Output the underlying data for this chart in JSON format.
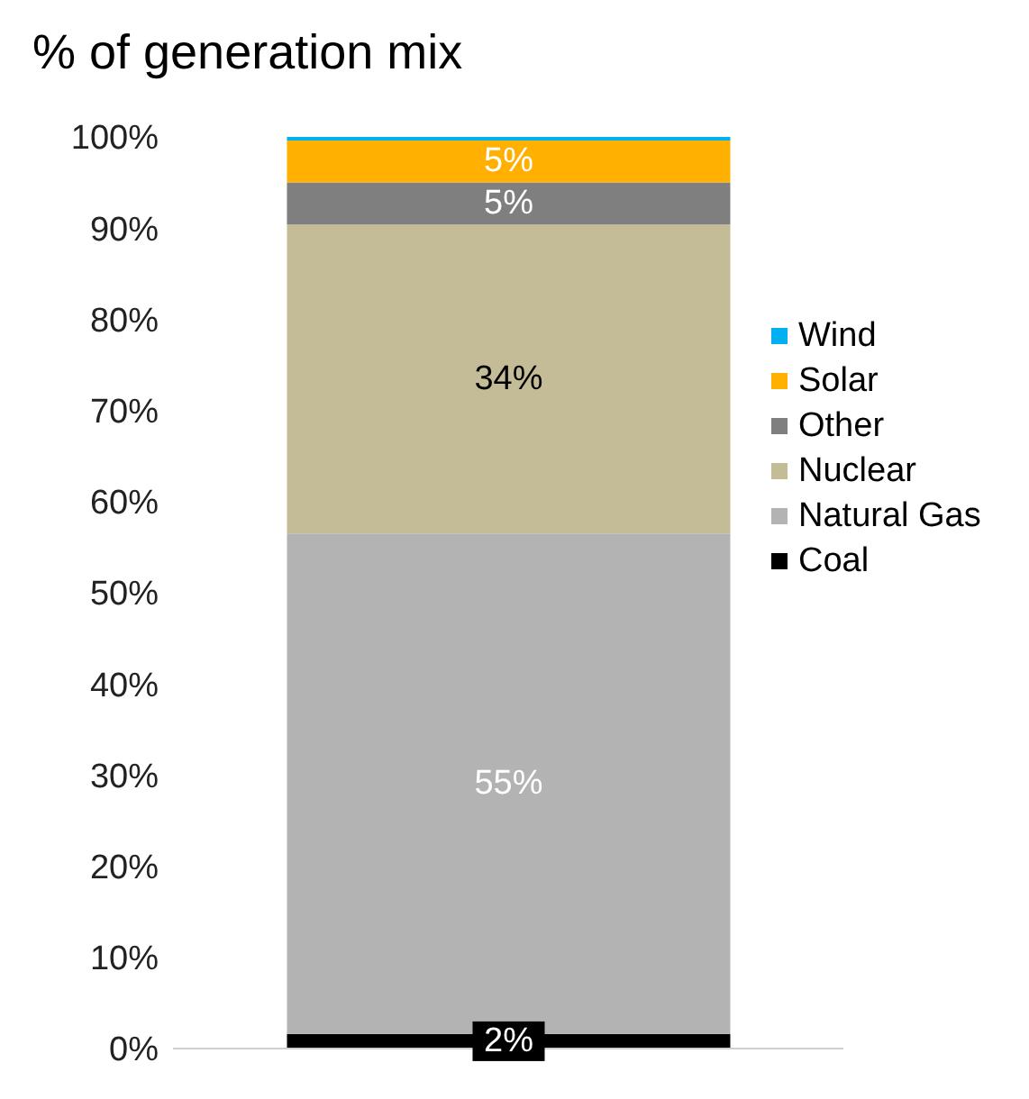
{
  "chart_data": {
    "type": "bar",
    "title": "% of generation mix",
    "stacked": true,
    "categories": [
      null
    ],
    "series": [
      {
        "name": "Coal",
        "color": "#000000",
        "values": [
          1.6
        ],
        "value_labels": [
          "2%"
        ]
      },
      {
        "name": "Natural Gas",
        "color": "#b3b3b3",
        "values": [
          54.9
        ],
        "value_labels": [
          "55%"
        ]
      },
      {
        "name": "Nuclear",
        "color": "#c4bc96",
        "values": [
          33.9
        ],
        "value_labels": [
          "34%"
        ]
      },
      {
        "name": "Other",
        "color": "#7f7f7f",
        "values": [
          4.6
        ],
        "value_labels": [
          "5%"
        ]
      },
      {
        "name": "Solar",
        "color": "#ffb000",
        "values": [
          4.6
        ],
        "value_labels": [
          "5%"
        ]
      },
      {
        "name": "Wind",
        "color": "#00b0f0",
        "values": [
          0.4
        ],
        "value_labels": [
          null
        ]
      }
    ],
    "ylim": [
      0,
      100
    ],
    "yticks": [
      {
        "value": 0,
        "label": "0%"
      },
      {
        "value": 10,
        "label": "10%"
      },
      {
        "value": 20,
        "label": "20%"
      },
      {
        "value": 30,
        "label": "30%"
      },
      {
        "value": 40,
        "label": "40%"
      },
      {
        "value": 50,
        "label": "50%"
      },
      {
        "value": 60,
        "label": "60%"
      },
      {
        "value": 70,
        "label": "70%"
      },
      {
        "value": 80,
        "label": "80%"
      },
      {
        "value": 90,
        "label": "90%"
      },
      {
        "value": 100,
        "label": "100%"
      }
    ],
    "grid": false,
    "legend": "right"
  }
}
